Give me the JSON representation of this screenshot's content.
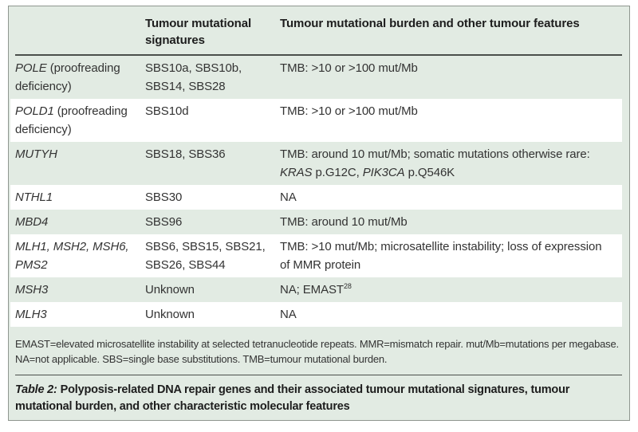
{
  "colors": {
    "panel_green": "#e2ebe3",
    "row_white": "#ffffff",
    "frame_border": "#8f968f",
    "rule": "#4a4f4b",
    "text": "#333333",
    "heading_text": "#1d1d1d"
  },
  "table": {
    "header": {
      "col1": "",
      "col2": "Tumour mutational signatures",
      "col3": "Tumour mutational burden and other tumour features"
    },
    "rows": [
      {
        "gene": [
          {
            "text": "POLE",
            "italic": true
          },
          {
            "text": " (proofreading deficiency)"
          }
        ],
        "signatures": [
          {
            "text": "SBS10a, SBS10b, SBS14, SBS28"
          }
        ],
        "features": [
          {
            "text": "TMB: >10 or >100 mut/Mb"
          }
        ]
      },
      {
        "gene": [
          {
            "text": "POLD1",
            "italic": true
          },
          {
            "text": " (proofreading deficiency)"
          }
        ],
        "signatures": [
          {
            "text": "SBS10d"
          }
        ],
        "features": [
          {
            "text": "TMB: >10 or >100 mut/Mb"
          }
        ]
      },
      {
        "gene": [
          {
            "text": "MUTYH",
            "italic": true
          }
        ],
        "signatures": [
          {
            "text": "SBS18, SBS36"
          }
        ],
        "features": [
          {
            "text": "TMB: around 10 mut/Mb; somatic mutations otherwise rare: "
          },
          {
            "text": "KRAS",
            "italic": true
          },
          {
            "text": " p.G12C, "
          },
          {
            "text": "PIK3CA",
            "italic": true
          },
          {
            "text": " p.Q546K"
          }
        ]
      },
      {
        "gene": [
          {
            "text": "NTHL1",
            "italic": true
          }
        ],
        "signatures": [
          {
            "text": "SBS30"
          }
        ],
        "features": [
          {
            "text": "NA"
          }
        ]
      },
      {
        "gene": [
          {
            "text": "MBD4",
            "italic": true
          }
        ],
        "signatures": [
          {
            "text": "SBS96"
          }
        ],
        "features": [
          {
            "text": "TMB: around 10 mut/Mb"
          }
        ]
      },
      {
        "gene": [
          {
            "text": "MLH1, MSH2, MSH6, PMS2",
            "italic": true
          }
        ],
        "signatures": [
          {
            "text": "SBS6, SBS15, SBS21, SBS26, SBS44"
          }
        ],
        "features": [
          {
            "text": "TMB: >10 mut/Mb; microsatellite instability; loss of expression of MMR protein"
          }
        ]
      },
      {
        "gene": [
          {
            "text": "MSH3",
            "italic": true
          }
        ],
        "signatures": [
          {
            "text": "Unknown"
          }
        ],
        "features": [
          {
            "text": "NA; EMAST"
          },
          {
            "text": "28",
            "sup": true
          }
        ]
      },
      {
        "gene": [
          {
            "text": "MLH3",
            "italic": true
          }
        ],
        "signatures": [
          {
            "text": "Unknown"
          }
        ],
        "features": [
          {
            "text": "NA"
          }
        ]
      }
    ]
  },
  "footnote": "EMAST=elevated microsatellite instability at selected tetranucleotide repeats. MMR=mismatch repair. mut/Mb=mutations per megabase. NA=not applicable. SBS=single base substitutions. TMB=tumour mutational burden.",
  "caption": {
    "label": "Table 2:",
    "text": "Polyposis-related DNA repair genes and their associated tumour mutational signatures, tumour mutational burden, and other characteristic molecular features"
  }
}
